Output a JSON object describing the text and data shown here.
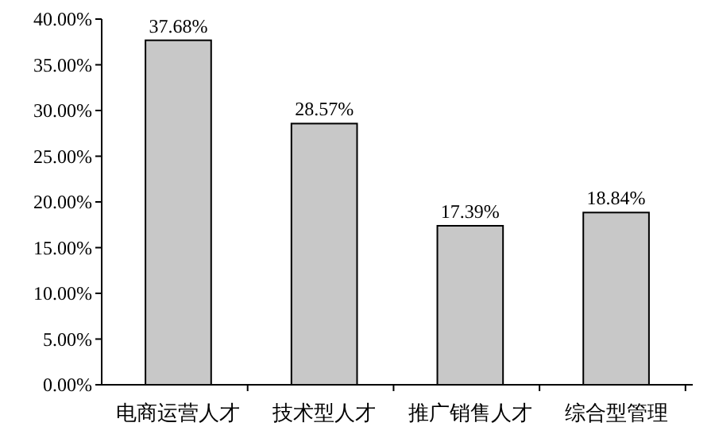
{
  "chart_data": {
    "type": "bar",
    "categories": [
      "电商运营人才",
      "技术型人才",
      "推广销售人才",
      "综合型管理"
    ],
    "values": [
      37.68,
      28.57,
      17.39,
      18.84
    ],
    "value_labels": [
      "37.68%",
      "28.57%",
      "17.39%",
      "18.84%"
    ],
    "color": "#c8c8c8",
    "ylim": [
      0,
      40
    ],
    "yticks": [
      {
        "value": 0,
        "label": "0.00%"
      },
      {
        "value": 5,
        "label": "5.00%"
      },
      {
        "value": 10,
        "label": "10.00%"
      },
      {
        "value": 15,
        "label": "15.00%"
      },
      {
        "value": 20,
        "label": "20.00%"
      },
      {
        "value": 25,
        "label": "25.00%"
      },
      {
        "value": 30,
        "label": "30.00%"
      },
      {
        "value": 35,
        "label": "35.00%"
      },
      {
        "value": 40,
        "label": "40.00%"
      }
    ],
    "grid": false
  }
}
